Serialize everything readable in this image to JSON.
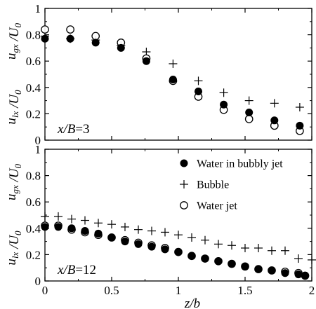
{
  "chart_data": [
    {
      "type": "scatter",
      "panel_label": "x/B=3",
      "ylabel_top": "u_gx /U_0",
      "ylabel_bottom": "u_lx /U_0",
      "xlim": [
        0,
        2
      ],
      "ylim": [
        0,
        1
      ],
      "yticks": [
        "0",
        "0.2",
        "0.4",
        "0.6",
        "0.8",
        "1"
      ],
      "series": [
        {
          "marker": "filled-circle",
          "x": [
            0,
            0.19,
            0.38,
            0.57,
            0.76,
            0.96,
            1.15,
            1.34,
            1.53,
            1.72,
            1.91
          ],
          "y": [
            0.77,
            0.77,
            0.74,
            0.7,
            0.6,
            0.46,
            0.37,
            0.27,
            0.21,
            0.15,
            0.11
          ]
        },
        {
          "marker": "plus",
          "x": [
            0,
            0.19,
            0.38,
            0.57,
            0.76,
            0.96,
            1.15,
            1.34,
            1.53,
            1.72,
            1.91
          ],
          "y": [
            0.79,
            0.77,
            0.76,
            0.72,
            0.67,
            0.58,
            0.45,
            0.36,
            0.3,
            0.28,
            0.25
          ]
        },
        {
          "marker": "open-circle",
          "x": [
            0,
            0.19,
            0.38,
            0.57,
            0.76,
            0.96,
            1.15,
            1.34,
            1.53,
            1.72,
            1.91
          ],
          "y": [
            0.84,
            0.84,
            0.79,
            0.74,
            0.62,
            0.45,
            0.33,
            0.23,
            0.16,
            0.11,
            0.07
          ]
        }
      ]
    },
    {
      "type": "scatter",
      "panel_label": "x/B=12",
      "ylabel_top": "u_gx /U_0",
      "ylabel_bottom": "u_lx /U_0",
      "xlabel": "z/b",
      "xlim": [
        0,
        2
      ],
      "ylim": [
        0,
        1
      ],
      "xticks": [
        "0",
        "0.5",
        "1",
        "1.5",
        "2"
      ],
      "yticks": [
        "0",
        "0.2",
        "0.4",
        "0.6",
        "0.8",
        "1"
      ],
      "legend_position": "top-right",
      "series": [
        {
          "name": "Water in bubbly jet",
          "marker": "filled-circle",
          "x": [
            0,
            0.1,
            0.2,
            0.3,
            0.4,
            0.5,
            0.6,
            0.7,
            0.8,
            0.9,
            1.0,
            1.1,
            1.2,
            1.3,
            1.4,
            1.5,
            1.6,
            1.7,
            1.8,
            1.9,
            1.95
          ],
          "y": [
            0.41,
            0.41,
            0.4,
            0.38,
            0.36,
            0.33,
            0.3,
            0.28,
            0.26,
            0.24,
            0.22,
            0.19,
            0.17,
            0.15,
            0.13,
            0.11,
            0.09,
            0.08,
            0.06,
            0.05,
            0.04
          ]
        },
        {
          "name": "Bubble",
          "marker": "plus",
          "x": [
            0,
            0.1,
            0.2,
            0.3,
            0.4,
            0.5,
            0.6,
            0.7,
            0.8,
            0.9,
            1.0,
            1.1,
            1.2,
            1.3,
            1.4,
            1.5,
            1.6,
            1.7,
            1.8,
            1.9,
            2.0
          ],
          "y": [
            0.49,
            0.49,
            0.47,
            0.46,
            0.44,
            0.43,
            0.41,
            0.39,
            0.38,
            0.37,
            0.35,
            0.33,
            0.31,
            0.28,
            0.27,
            0.25,
            0.25,
            0.23,
            0.23,
            0.17,
            0.16
          ]
        },
        {
          "name": "Water jet",
          "marker": "open-circle",
          "x": [
            0,
            0.1,
            0.2,
            0.3,
            0.4,
            0.5,
            0.6,
            0.7,
            0.8,
            0.9,
            1.0,
            1.1,
            1.2,
            1.3,
            1.4,
            1.5,
            1.6,
            1.7,
            1.8,
            1.9,
            1.95
          ],
          "y": [
            0.42,
            0.42,
            0.39,
            0.37,
            0.35,
            0.33,
            0.31,
            0.29,
            0.27,
            0.25,
            0.22,
            0.19,
            0.17,
            0.15,
            0.13,
            0.11,
            0.09,
            0.08,
            0.07,
            0.06,
            0.04
          ]
        }
      ]
    }
  ]
}
